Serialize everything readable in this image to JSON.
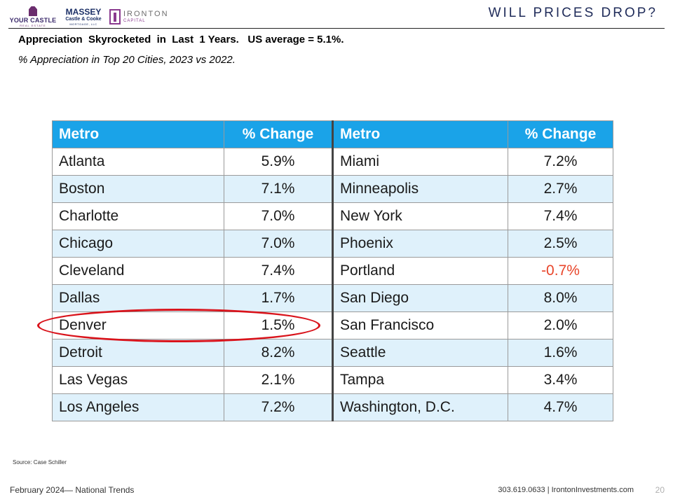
{
  "header": {
    "logos": {
      "your_castle": {
        "name": "YOUR CASTLE",
        "tagline": "REAL ESTATE"
      },
      "massey": {
        "line1": "MASSEY",
        "line2": "Castle & Cooke",
        "line3": "MORTGAGE, LLC"
      },
      "ironton": {
        "line1": "IRONTON",
        "line2": "CAPITAL"
      }
    },
    "title": "WILL PRICES DROP?"
  },
  "headline": "Appreciation  Skyrocketed  in  Last  1 Years.   US average = 5.1%.",
  "subheadline": "% Appreciation in Top 20 Cities, 2023 vs 2022.",
  "table": {
    "headers": [
      "Metro",
      "% Change",
      "Metro",
      "% Change"
    ],
    "rows": [
      [
        "Atlanta",
        "5.9%",
        "Miami",
        "7.2%"
      ],
      [
        "Boston",
        "7.1%",
        "Minneapolis",
        "2.7%"
      ],
      [
        "Charlotte",
        "7.0%",
        "New York",
        "7.4%"
      ],
      [
        "Chicago",
        "7.0%",
        "Phoenix",
        "2.5%"
      ],
      [
        "Cleveland",
        "7.4%",
        "Portland",
        "-0.7%"
      ],
      [
        "Dallas",
        "1.7%",
        "San Diego",
        "8.0%"
      ],
      [
        "Denver",
        "1.5%",
        "San Francisco",
        "2.0%"
      ],
      [
        "Detroit",
        "8.2%",
        "Seattle",
        "1.6%"
      ],
      [
        "Las Vegas",
        "2.1%",
        "Tampa",
        "3.4%"
      ],
      [
        "Los Angeles",
        "7.2%",
        "Washington, D.C.",
        "4.7%"
      ]
    ],
    "highlighted_metro": "Denver",
    "colors": {
      "header_bg": "#1aa3e8",
      "stripe_bg": "#dff1fb",
      "negative": "#e8452a",
      "highlight_ring": "#d9131b"
    }
  },
  "source": "Source: Case Schiller",
  "footer": {
    "left": "February 2024— National Trends",
    "right": "303.619.0633 | IrontonInvestments.com",
    "page_number": "20"
  }
}
